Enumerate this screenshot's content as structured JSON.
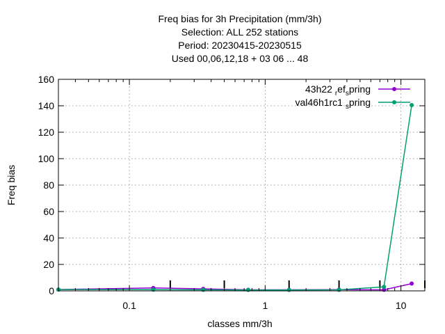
{
  "chart_data": {
    "type": "line",
    "title_lines": [
      "Freq bias  for 3h Precipitation (mm/3h)",
      "Selection: ALL    252 stations",
      "Period: 20230415-20230515",
      "Used  00,06,12,18  + 03 06 ... 48"
    ],
    "xlabel": "classes mm/3h",
    "ylabel": "Freq bias",
    "x_scale": "log",
    "xlim": [
      0.03,
      15
    ],
    "ylim": [
      0,
      160
    ],
    "x_ticks": [
      {
        "value": 0.1,
        "label": "0.1"
      },
      {
        "value": 1,
        "label": "1"
      },
      {
        "value": 10,
        "label": "10"
      }
    ],
    "y_ticks": [
      {
        "value": 0,
        "label": "0"
      },
      {
        "value": 20,
        "label": "20"
      },
      {
        "value": 40,
        "label": "40"
      },
      {
        "value": 60,
        "label": "60"
      },
      {
        "value": 80,
        "label": "80"
      },
      {
        "value": 100,
        "label": "100"
      },
      {
        "value": 120,
        "label": "120"
      },
      {
        "value": 140,
        "label": "140"
      },
      {
        "value": 160,
        "label": "160"
      }
    ],
    "grid": true,
    "legend_position": "top-right",
    "class_marks": [
      0.2,
      0.5,
      1.5,
      3.5,
      7,
      15
    ],
    "series": [
      {
        "name": "43h22",
        "name_sub": "r",
        "name_mid": "ef",
        "name_sub2": "s",
        "name_tail": "pring",
        "color": "#9400d3",
        "x": [
          0.03,
          0.15,
          0.35,
          0.75,
          1.5,
          3.5,
          7.5,
          12
        ],
        "y": [
          1.0,
          2.2,
          1.5,
          0.8,
          0.8,
          0.9,
          0.8,
          5.5
        ]
      },
      {
        "name": "val46h1rc1",
        "name_sub": "s",
        "name_mid": "",
        "name_sub2": "",
        "name_tail": "pring",
        "color": "#009e73",
        "x": [
          0.03,
          0.15,
          0.35,
          0.75,
          1.5,
          3.5,
          7.5,
          12
        ],
        "y": [
          1.0,
          0.9,
          0.8,
          0.7,
          0.7,
          0.8,
          3.0,
          140.5
        ]
      }
    ]
  }
}
